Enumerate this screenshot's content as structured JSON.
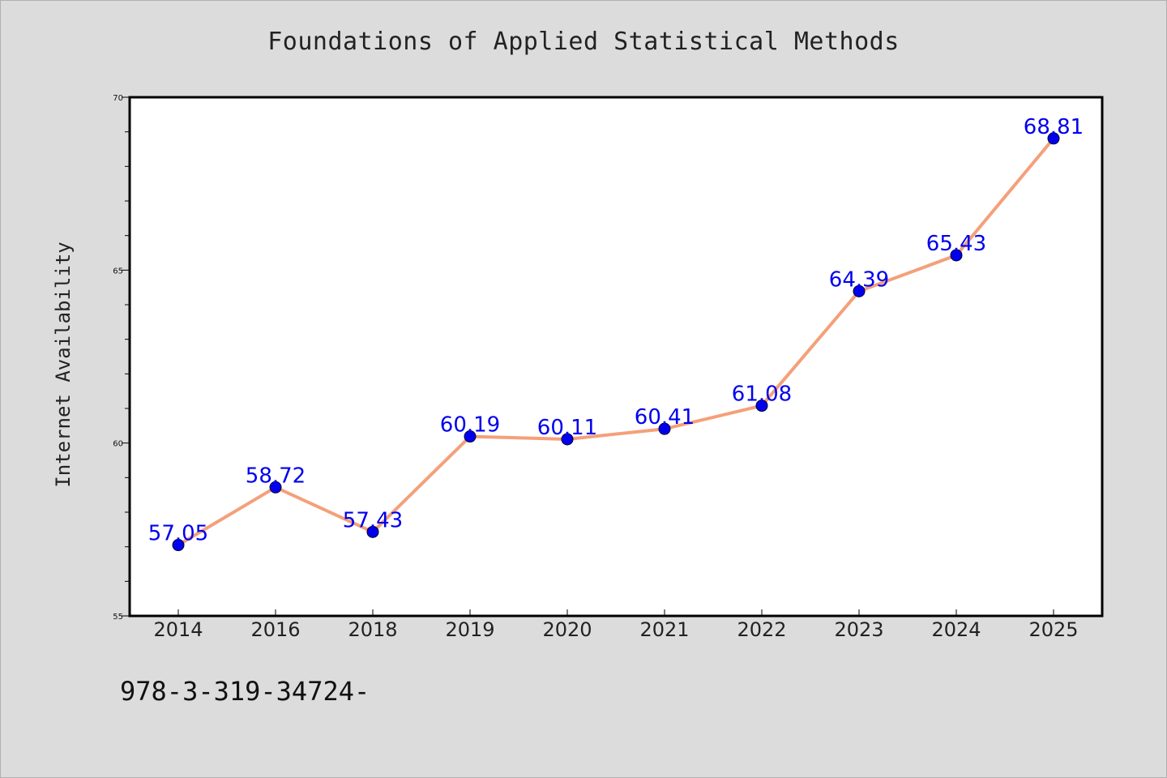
{
  "title": "Foundations of Applied Statistical Methods",
  "footer_text": "978-3-319-34724-",
  "colors": {
    "background": "#dcdcdc",
    "plot_background": "#ffffff",
    "line": "#f4a07a",
    "marker": "#0000ee",
    "data_label": "#0000ee"
  },
  "chart_data": {
    "type": "line",
    "title": "Foundations of Applied Statistical Methods",
    "xlabel": "",
    "ylabel": "Internet Availability",
    "categories": [
      "2014",
      "2016",
      "2018",
      "2019",
      "2020",
      "2021",
      "2022",
      "2023",
      "2024",
      "2025"
    ],
    "series": [
      {
        "values": [
          57.05,
          58.72,
          57.43,
          60.19,
          60.11,
          60.41,
          61.08,
          64.39,
          65.43,
          68.81
        ],
        "data_labels": [
          "57.05",
          "58.72",
          "57.43",
          "60.19",
          "60.11",
          "60.41",
          "61.08",
          "64.39",
          "65.43",
          "68.81"
        ]
      }
    ],
    "ylim": [
      55,
      70
    ],
    "yticks": [
      "55",
      "60",
      "65",
      "70"
    ],
    "grid": false,
    "legend": "none"
  }
}
